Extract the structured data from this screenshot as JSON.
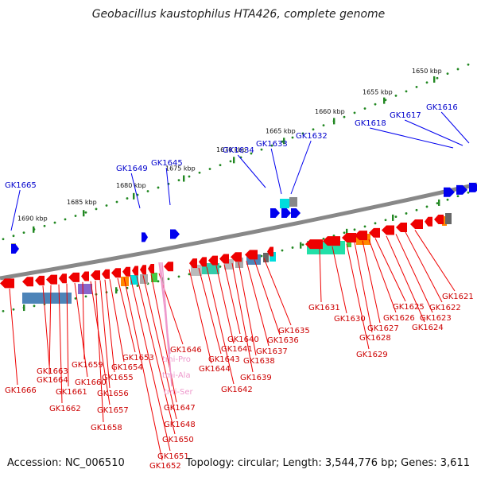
{
  "title": "Geobacillus kaustophilus HTA426, complete genome",
  "footer": {
    "accession": "Accession: NC_006510",
    "summary": "Topology: circular; Length: 3,544,776 bp; Genes: 3,611"
  },
  "scale_labels": [
    "1690 kbp",
    "1685 kbp",
    "1680 kbp",
    "1675 kbp",
    "1670 kbp",
    "1665 kbp",
    "1660 kbp",
    "1655 kbp",
    "1650 kbp"
  ],
  "upper_genes": [
    "GK1665",
    "GK1649",
    "GK1645",
    "GK1634",
    "GK1633",
    "GK1632",
    "GK1618",
    "GK1617",
    "GK1616"
  ],
  "lower_genes": [
    "GK1666",
    "GK1663",
    "GK1664",
    "GK1662",
    "GK1661",
    "GK1660",
    "GK1659",
    "GK1657",
    "GK1658",
    "GK1656",
    "GK1655",
    "GK1654",
    "GK1653",
    "GK1652",
    "GK1651",
    "GK1650",
    "GK1648",
    "GK1647",
    "GK1646",
    "GK1644",
    "GK1643",
    "GK1642",
    "GK1641",
    "GK1640",
    "GK1639",
    "GK1638",
    "GK1637",
    "GK1636",
    "GK1635",
    "GK1631",
    "GK1630",
    "GK1629",
    "GK1628",
    "GK1627",
    "GK1626",
    "GK1625",
    "GK1624",
    "GK1623",
    "GK1622",
    "GK1621"
  ],
  "trna_labels": [
    "tmi-Pro",
    "tmi-Ala",
    "tmi-Ser"
  ],
  "colors": {
    "forward_gene": "#0000ee",
    "reverse_gene": "#ee0000",
    "backbone": "#888888",
    "scale": "#228822",
    "upper_label": "#0000cc",
    "lower_label": "#cc0000",
    "trna": "#ee99cc"
  }
}
